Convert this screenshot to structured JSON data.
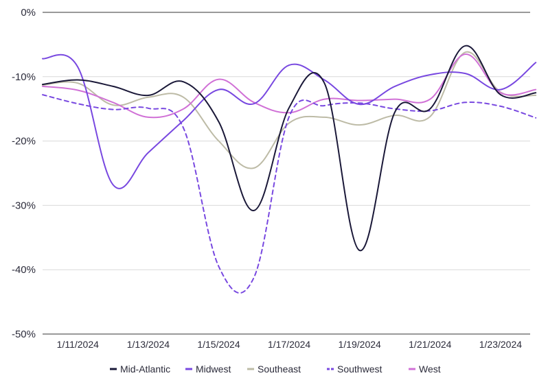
{
  "chart_data": {
    "type": "line",
    "x": [
      "1/10/2024",
      "1/11/2024",
      "1/12/2024",
      "1/13/2024",
      "1/14/2024",
      "1/15/2024",
      "1/16/2024",
      "1/17/2024",
      "1/18/2024",
      "1/19/2024",
      "1/20/2024",
      "1/21/2024",
      "1/22/2024",
      "1/23/2024",
      "1/24/2024"
    ],
    "x_tick_labels": [
      "1/11/2024",
      "1/13/2024",
      "1/15/2024",
      "1/17/2024",
      "1/19/2024",
      "1/21/2024",
      "1/23/2024"
    ],
    "y_tick_labels": [
      "0%",
      "-10%",
      "-20%",
      "-30%",
      "-40%",
      "-50%"
    ],
    "ylim": [
      -50,
      0
    ],
    "grid": true,
    "legend_position": "bottom",
    "series": [
      {
        "name": "Mid-Atlantic",
        "color": "#1a1838",
        "dash": "solid",
        "values": [
          -11.2,
          -10.5,
          -11.5,
          -12.9,
          -10.8,
          -17.0,
          -30.8,
          -14.8,
          -11.0,
          -37.0,
          -15.5,
          -15.0,
          -5.2,
          -12.8,
          -12.5
        ]
      },
      {
        "name": "Midwest",
        "color": "#7848e0",
        "dash": "solid",
        "values": [
          -7.2,
          -8.5,
          -26.8,
          -21.8,
          -16.8,
          -12.0,
          -14.2,
          -8.2,
          -10.5,
          -14.3,
          -11.5,
          -9.7,
          -9.5,
          -12.0,
          -7.8
        ]
      },
      {
        "name": "Southeast",
        "color": "#bdbba6",
        "dash": "solid",
        "values": [
          -11.3,
          -11.0,
          -14.4,
          -13.2,
          -13.2,
          -20.0,
          -24.2,
          -17.2,
          -16.3,
          -17.5,
          -16.0,
          -16.2,
          -6.2,
          -12.4,
          -12.9
        ]
      },
      {
        "name": "Southwest",
        "color": "#7848e0",
        "dash": "dashed",
        "values": [
          -12.8,
          -14.2,
          -15.1,
          -14.9,
          -18.0,
          -39.5,
          -41.2,
          -16.2,
          -14.5,
          -14.1,
          -15.0,
          -15.3,
          -14.0,
          -14.6,
          -16.4
        ]
      },
      {
        "name": "West",
        "color": "#d070d6",
        "dash": "solid",
        "values": [
          -11.5,
          -12.1,
          -14.0,
          -16.3,
          -15.0,
          -10.4,
          -14.0,
          -15.6,
          -13.5,
          -13.7,
          -13.5,
          -13.5,
          -6.5,
          -12.5,
          -12.0
        ]
      }
    ]
  }
}
